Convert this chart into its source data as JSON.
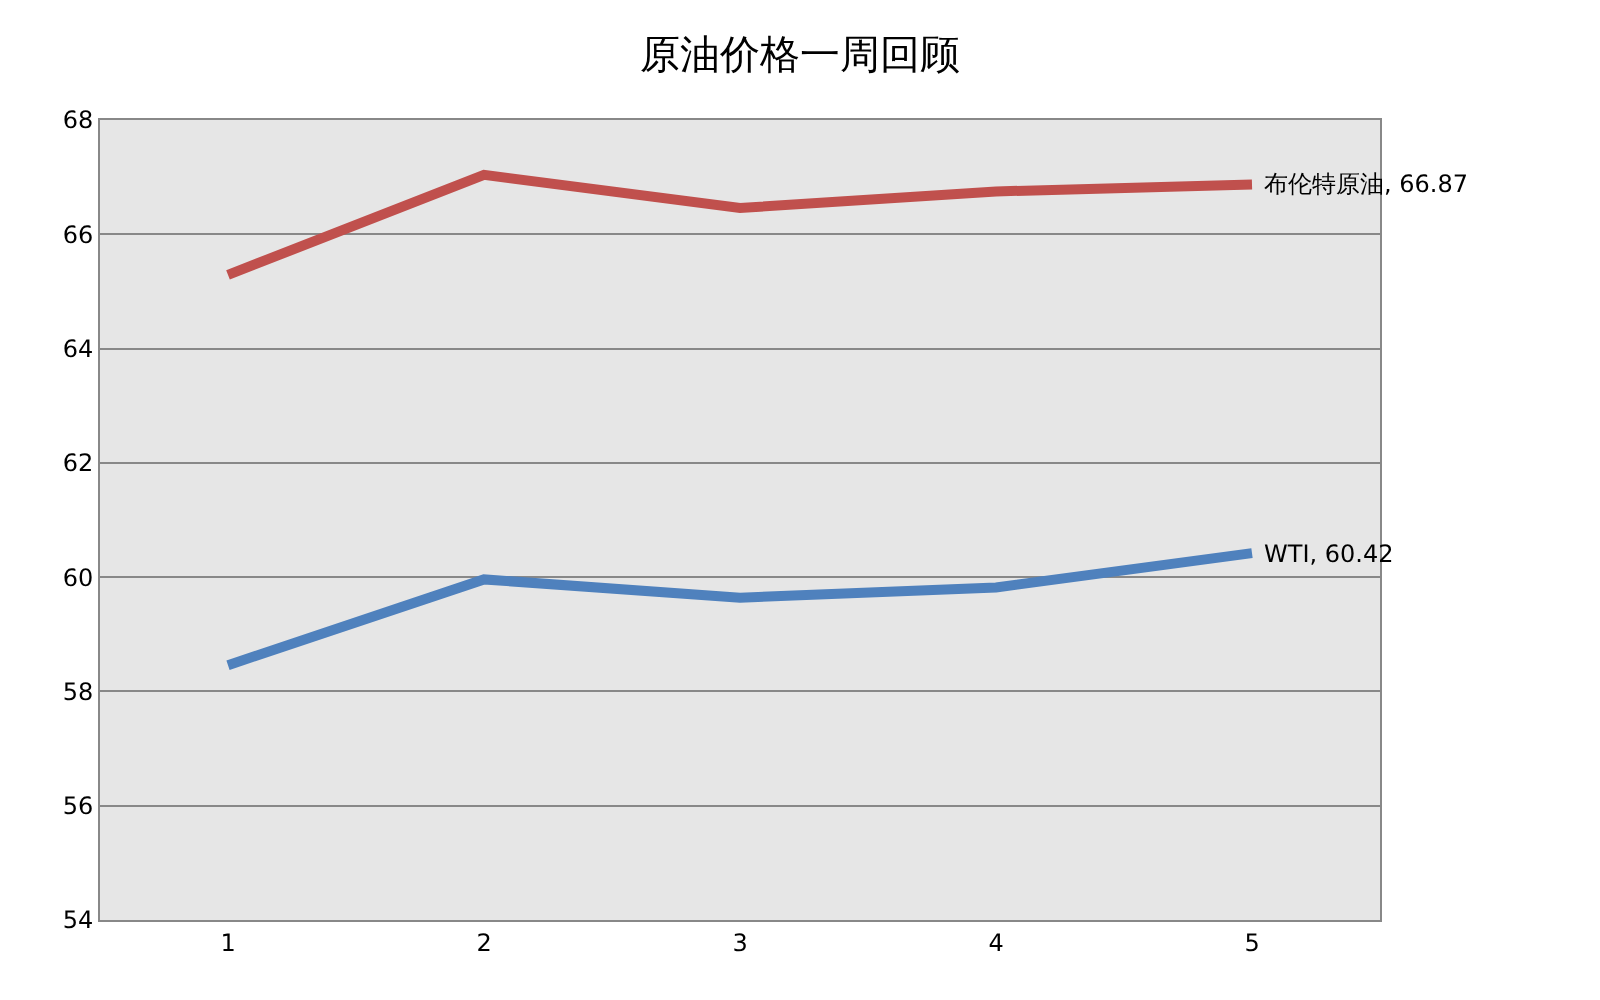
{
  "chart_data": {
    "type": "line",
    "title": "原油价格一周回顾",
    "categories": [
      "1",
      "2",
      "3",
      "4",
      "5"
    ],
    "series": [
      {
        "name": "布伦特原油",
        "color": "#c0504d",
        "values": [
          65.29,
          67.04,
          66.46,
          66.75,
          66.87
        ],
        "value_labels": [
          null,
          null,
          null,
          null,
          ", 66.87"
        ]
      },
      {
        "name": "WTI",
        "color": "#4f81bd",
        "values": [
          58.46,
          59.96,
          59.64,
          59.82,
          60.42
        ],
        "value_labels": [
          null,
          null,
          null,
          null,
          ", 60.42"
        ]
      }
    ],
    "ylim": [
      54,
      68
    ],
    "yticks": [
      54,
      56,
      58,
      60,
      62,
      64,
      66,
      68
    ],
    "grid": "y",
    "legend": false,
    "marker": "none",
    "line_style": "solid"
  }
}
